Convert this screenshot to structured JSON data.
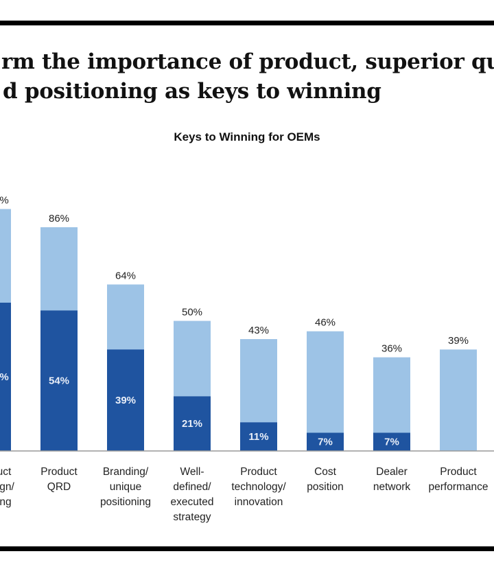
{
  "headline": {
    "line1": "rm the importance of product, superior qua",
    "line2": "d positioning as keys to winning"
  },
  "chart_data": {
    "type": "bar",
    "stacked": true,
    "title": "Keys to Winning for OEMs",
    "categories": [
      [
        "uct",
        "gn/",
        "ng"
      ],
      [
        "Product",
        "QRD"
      ],
      [
        "Branding/",
        "unique",
        "positioning"
      ],
      [
        "Well-",
        "defined/",
        "executed",
        "strategy"
      ],
      [
        "Product",
        "technology/",
        "innovation"
      ],
      [
        "Cost",
        "position"
      ],
      [
        "Dealer",
        "network"
      ],
      [
        "Product",
        "performance"
      ]
    ],
    "totals": [
      93,
      86,
      64,
      50,
      43,
      46,
      36,
      39
    ],
    "dark_values": [
      57,
      54,
      39,
      21,
      11,
      7,
      7,
      null
    ],
    "total_labels": [
      "%",
      "86%",
      "64%",
      "50%",
      "43%",
      "46%",
      "36%",
      "39%"
    ],
    "dark_labels": [
      "%",
      "54%",
      "39%",
      "21%",
      "11%",
      "7%",
      "7%",
      ""
    ],
    "ylim": [
      0,
      100
    ],
    "grid": false,
    "colors": {
      "dark": "#1f54a0",
      "light": "#9dc3e6",
      "axis": "#999999"
    }
  }
}
